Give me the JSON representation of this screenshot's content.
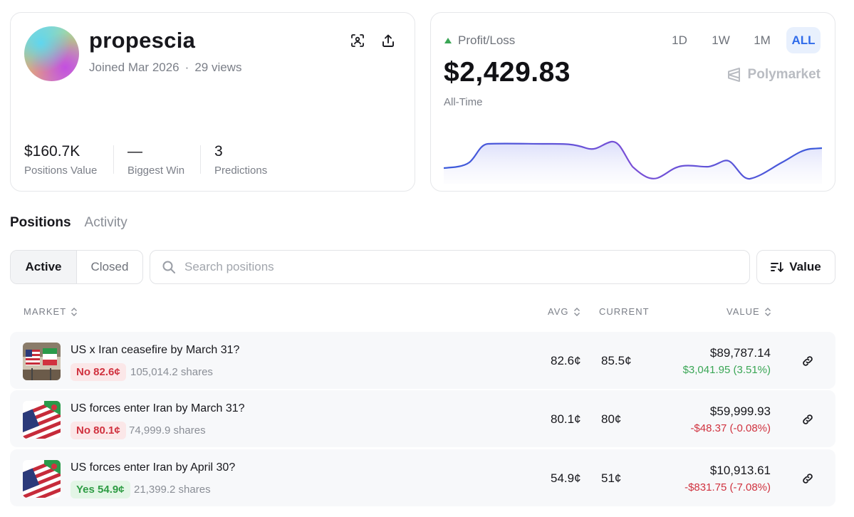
{
  "profile": {
    "username": "propescia",
    "joined": "Joined Mar 2026",
    "separator": "·",
    "views": "29 views",
    "stats": [
      {
        "value": "$160.7K",
        "label": "Positions Value"
      },
      {
        "value": "—",
        "label": "Biggest Win"
      },
      {
        "value": "3",
        "label": "Predictions"
      }
    ]
  },
  "pnl": {
    "label": "Profit/Loss",
    "amount": "$2,429.83",
    "period": "All-Time",
    "brand": "Polymarket",
    "ranges": [
      "1D",
      "1W",
      "1M",
      "ALL"
    ],
    "active_range": "ALL",
    "colors": {
      "up_arrow": "#3aa655",
      "line_start": "#3b5bdb",
      "line_end": "#8e4fd6",
      "fill": "#dfe2fb"
    }
  },
  "tabs": {
    "positions": "Positions",
    "activity": "Activity"
  },
  "filters": {
    "active": "Active",
    "closed": "Closed"
  },
  "search": {
    "placeholder": "Search positions"
  },
  "sort": {
    "label": "Value"
  },
  "table": {
    "headers": {
      "market": "MARKET",
      "avg": "AVG",
      "current": "CURRENT",
      "value": "VALUE"
    },
    "rows": [
      {
        "title": "US x Iran ceasefire by March 31?",
        "outcome": "No 82.6¢",
        "outcome_type": "no",
        "shares": "105,014.2 shares",
        "avg": "82.6¢",
        "current": "85.5¢",
        "value": "$89,787.14",
        "change": "$3,041.95 (3.51%)",
        "change_type": "pos"
      },
      {
        "title": "US forces enter Iran by March 31?",
        "outcome": "No 80.1¢",
        "outcome_type": "no",
        "shares": "74,999.9 shares",
        "avg": "80.1¢",
        "current": "80¢",
        "value": "$59,999.93",
        "change": "-$48.37 (-0.08%)",
        "change_type": "neg"
      },
      {
        "title": "US forces enter Iran by April 30?",
        "outcome": "Yes 54.9¢",
        "outcome_type": "yes",
        "shares": "21,399.2 shares",
        "avg": "54.9¢",
        "current": "51¢",
        "value": "$10,913.61",
        "change": "-$831.75 (-7.08%)",
        "change_type": "neg"
      }
    ]
  }
}
